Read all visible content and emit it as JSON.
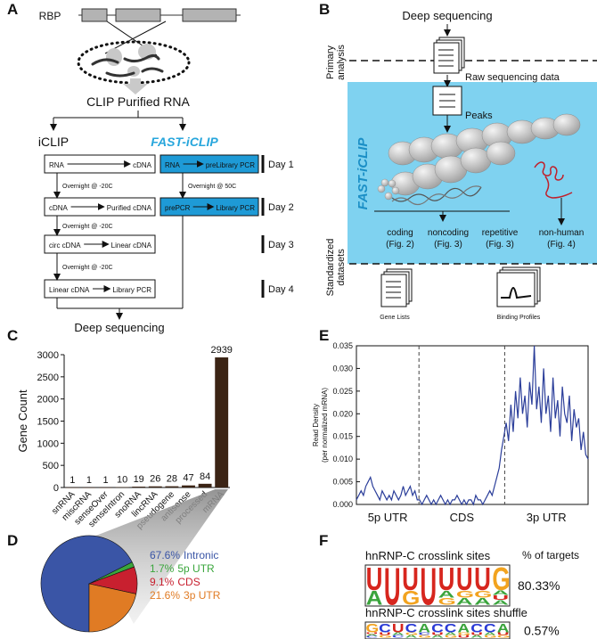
{
  "panel_labels": [
    "A",
    "B",
    "C",
    "D",
    "E",
    "F"
  ],
  "panel_a": {
    "rbp": "RBP",
    "clip_rna": "CLIP Purified RNA",
    "iclip": "iCLIP",
    "fast_iclip": "FAST-iCLIP",
    "iclip_steps": [
      [
        "RNA",
        "cDNA"
      ],
      [
        "cDNA",
        "Purified cDNA"
      ],
      [
        "circ cDNA",
        "Linear cDNA"
      ],
      [
        "Linear cDNA",
        "Library PCR"
      ]
    ],
    "iclip_notes": [
      "Overnight @ -20C",
      "Overnight @ -20C",
      "Overnight @ -20C"
    ],
    "fast_steps": [
      [
        "RNA",
        "preLibrary PCR"
      ],
      [
        "prePCR",
        "Library PCR"
      ]
    ],
    "fast_notes": [
      "Overnight @ 50C"
    ],
    "days": [
      "Day 1",
      "Day 2",
      "Day 3",
      "Day 4"
    ],
    "output": "Deep sequencing"
  },
  "panel_b": {
    "input": "Deep sequencing",
    "primary": [
      "Primary",
      "analysis"
    ],
    "raw": "Raw sequencing data",
    "peaks": "Peaks",
    "fast_iclip": "FAST-iCLIP",
    "classes": [
      [
        "coding",
        "(Fig. 2)"
      ],
      [
        "noncoding",
        "(Fig. 3)"
      ],
      [
        "repetitive",
        "(Fig. 3)"
      ],
      [
        "non-human",
        "(Fig. 4)"
      ]
    ],
    "standardized": [
      "Standardized",
      "datasets"
    ],
    "gene_lists": "Gene Lists",
    "binding_profiles": "Binding Profiles"
  },
  "chart_data": [
    {
      "type": "bar",
      "y_label": "Gene Count",
      "categories": [
        "snRNA",
        "miscRNA",
        "senseOver",
        "senseIntron",
        "snoRNA",
        "lincRNA",
        "pseudogene",
        "antisense",
        "processed",
        "mRNA"
      ],
      "values": [
        1,
        1,
        1,
        10,
        19,
        26,
        28,
        47,
        84,
        2939
      ],
      "color": "#3b2415",
      "ylim": [
        0,
        3000
      ],
      "yticks": [
        0,
        500,
        1000,
        1500,
        2000,
        2500,
        3000
      ]
    },
    {
      "type": "pie",
      "categories": [
        "Intronic",
        "5p UTR",
        "CDS",
        "3p UTR"
      ],
      "values": [
        67.6,
        1.7,
        9.1,
        21.6
      ],
      "value_labels": [
        "67.6%",
        "1.7%",
        "9.1%",
        "21.6%"
      ],
      "colors": [
        "#3a55a6",
        "#3aa63c",
        "#c8202f",
        "#e07b24"
      ]
    },
    {
      "type": "line",
      "y_label": [
        "Read Density",
        "(per normalized mRNA)"
      ],
      "x_labels": [
        "5p UTR",
        "CDS",
        "3p UTR"
      ],
      "color": "#2b3e9a",
      "ylim": [
        0,
        0.035
      ],
      "yticks": [
        {
          "value": 0,
          "label": "0.000"
        },
        0.005,
        {
          "value": 0.01,
          "label": "0.010"
        },
        0.015,
        {
          "value": 0.02,
          "label": "0.020"
        },
        0.025,
        {
          "value": 0.03,
          "label": "0.030"
        },
        0.035
      ],
      "values": [
        0.001,
        0.002,
        0.003,
        0.002,
        0.004,
        0.005,
        0.006,
        0.004,
        0.003,
        0.002,
        0.001,
        0.003,
        0.002,
        0.001,
        0.002,
        0.001,
        0.003,
        0.002,
        0.001,
        0.002,
        0.004,
        0.002,
        0.003,
        0.004,
        0.002,
        0.003,
        0.001,
        0.001,
        0,
        0.001,
        0.002,
        0.001,
        0,
        0.001,
        0,
        0.001,
        0.002,
        0.001,
        0,
        0.001,
        0,
        0.001,
        0.001,
        0.002,
        0.001,
        0,
        0.001,
        0,
        0.001,
        0.001,
        0,
        0.002,
        0.001,
        0.001,
        0,
        0.001,
        0.002,
        0.003,
        0.002,
        0.004,
        0.006,
        0.008,
        0.012,
        0.015,
        0.018,
        0.014,
        0.022,
        0.016,
        0.025,
        0.019,
        0.028,
        0.02,
        0.024,
        0.017,
        0.027,
        0.022,
        0.035,
        0.021,
        0.026,
        0.018,
        0.03,
        0.02,
        0.024,
        0.016,
        0.028,
        0.019,
        0.023,
        0.015,
        0.026,
        0.02,
        0.018,
        0.024,
        0.014,
        0.021,
        0.017,
        0.019,
        0.012,
        0.016,
        0.011,
        0.01
      ]
    }
  ],
  "panel_f": {
    "targets_header": "% of targets",
    "letter_colors": {
      "A": "#3aa43c",
      "C": "#2b3bd6",
      "G": "#f2a31f",
      "U": "#d7261e"
    },
    "logos": [
      {
        "title": "hnRNP-C crosslink sites",
        "percent": "80.33%",
        "columns": [
          "UA",
          "U",
          "UG",
          "U",
          "UAG",
          "UGA",
          "UGA",
          "GAUA"
        ]
      },
      {
        "title": "hnRNP-C crosslink sites shuffle",
        "percent": "0.57%",
        "columns": [
          "GUAC",
          "CUG",
          "UAC",
          "CGA",
          "ACG",
          "CUA",
          "CAG",
          "AGU",
          "CUA",
          "CAG",
          "AUG"
        ]
      }
    ]
  }
}
